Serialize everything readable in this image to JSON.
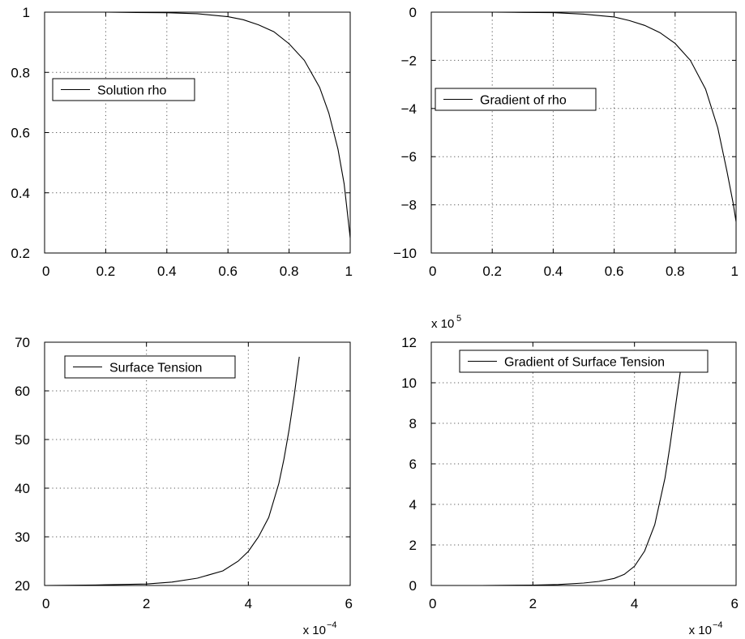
{
  "chart_data": [
    {
      "type": "line",
      "xlim": [
        0,
        1
      ],
      "ylim": [
        0.2,
        1
      ],
      "xticks": [
        0,
        0.2,
        0.4,
        0.6,
        0.8,
        1
      ],
      "yticks": [
        0.2,
        0.4,
        0.6,
        0.8,
        1
      ],
      "xtick_labels": [
        "0",
        "0.2",
        "0.4",
        "0.6",
        "0.8",
        "1"
      ],
      "ytick_labels": [
        "0.2",
        "0.4",
        "0.6",
        "0.8",
        "1"
      ],
      "grid": true,
      "legend_position": "upper-left",
      "series": [
        {
          "name": "Solution rho",
          "x": [
            0,
            0.1,
            0.2,
            0.3,
            0.4,
            0.5,
            0.6,
            0.65,
            0.7,
            0.75,
            0.8,
            0.85,
            0.9,
            0.93,
            0.96,
            0.98,
            1.0
          ],
          "y": [
            1.0,
            1.0,
            1.0,
            0.999,
            0.998,
            0.995,
            0.985,
            0.975,
            0.958,
            0.935,
            0.895,
            0.84,
            0.75,
            0.665,
            0.545,
            0.43,
            0.25
          ]
        }
      ]
    },
    {
      "type": "line",
      "xlim": [
        0,
        1
      ],
      "ylim": [
        -10,
        0
      ],
      "xticks": [
        0,
        0.2,
        0.4,
        0.6,
        0.8,
        1
      ],
      "yticks": [
        -10,
        -8,
        -6,
        -4,
        -2,
        0
      ],
      "xtick_labels": [
        "0",
        "0.2",
        "0.4",
        "0.6",
        "0.8",
        "1"
      ],
      "ytick_labels": [
        "−10",
        "−8",
        "−6",
        "−4",
        "−2",
        "0"
      ],
      "grid": true,
      "legend_position": "upper-left",
      "series": [
        {
          "name": "Gradient of rho",
          "x": [
            0,
            0.1,
            0.2,
            0.3,
            0.4,
            0.5,
            0.6,
            0.65,
            0.7,
            0.75,
            0.8,
            0.85,
            0.9,
            0.94,
            0.97,
            0.99,
            1.0
          ],
          "y": [
            0,
            0,
            0,
            -0.01,
            -0.02,
            -0.08,
            -0.2,
            -0.35,
            -0.55,
            -0.85,
            -1.3,
            -2.0,
            -3.2,
            -4.8,
            -6.6,
            -7.9,
            -8.7
          ]
        }
      ]
    },
    {
      "type": "line",
      "xlim": [
        0,
        6
      ],
      "ylim": [
        20,
        70
      ],
      "xticks": [
        0,
        2,
        4,
        6
      ],
      "yticks": [
        20,
        30,
        40,
        50,
        60,
        70
      ],
      "xtick_labels": [
        "0",
        "2",
        "4",
        "6"
      ],
      "ytick_labels": [
        "20",
        "30",
        "40",
        "50",
        "60",
        "70"
      ],
      "x_multiplier_label": "x 10",
      "x_multiplier_exponent": "−4",
      "grid": true,
      "legend_position": "upper-left",
      "series": [
        {
          "name": "Surface Tension",
          "x": [
            0,
            1,
            2,
            2.5,
            3,
            3.5,
            3.8,
            4.0,
            4.2,
            4.4,
            4.6,
            4.7,
            4.8,
            4.9,
            5.0
          ],
          "y": [
            20,
            20.1,
            20.3,
            20.7,
            21.5,
            23,
            25,
            27,
            30,
            34,
            41,
            46,
            52,
            59,
            67
          ]
        }
      ]
    },
    {
      "type": "line",
      "xlim": [
        0,
        6
      ],
      "ylim": [
        0,
        12
      ],
      "xticks": [
        0,
        2,
        4,
        6
      ],
      "yticks": [
        0,
        2,
        4,
        6,
        8,
        10,
        12
      ],
      "xtick_labels": [
        "0",
        "2",
        "4",
        "6"
      ],
      "ytick_labels": [
        "0",
        "2",
        "4",
        "6",
        "8",
        "10",
        "12"
      ],
      "x_multiplier_label": "x 10",
      "x_multiplier_exponent": "−4",
      "y_multiplier_label": "x 10",
      "y_multiplier_exponent": "5",
      "grid": true,
      "legend_position": "upper-right",
      "series": [
        {
          "name": "Gradient of Surface Tension",
          "x": [
            0,
            1,
            2,
            2.5,
            3,
            3.3,
            3.6,
            3.8,
            4.0,
            4.2,
            4.4,
            4.6,
            4.7,
            4.8,
            4.9,
            4.95
          ],
          "y": [
            0,
            0,
            0.02,
            0.05,
            0.12,
            0.2,
            0.35,
            0.55,
            0.95,
            1.7,
            3.0,
            5.3,
            6.9,
            8.7,
            10.5,
            11.5
          ]
        }
      ]
    }
  ],
  "colors": {
    "line": "#000000",
    "grid": "#555555",
    "axes": "#000000",
    "background": "#ffffff"
  }
}
